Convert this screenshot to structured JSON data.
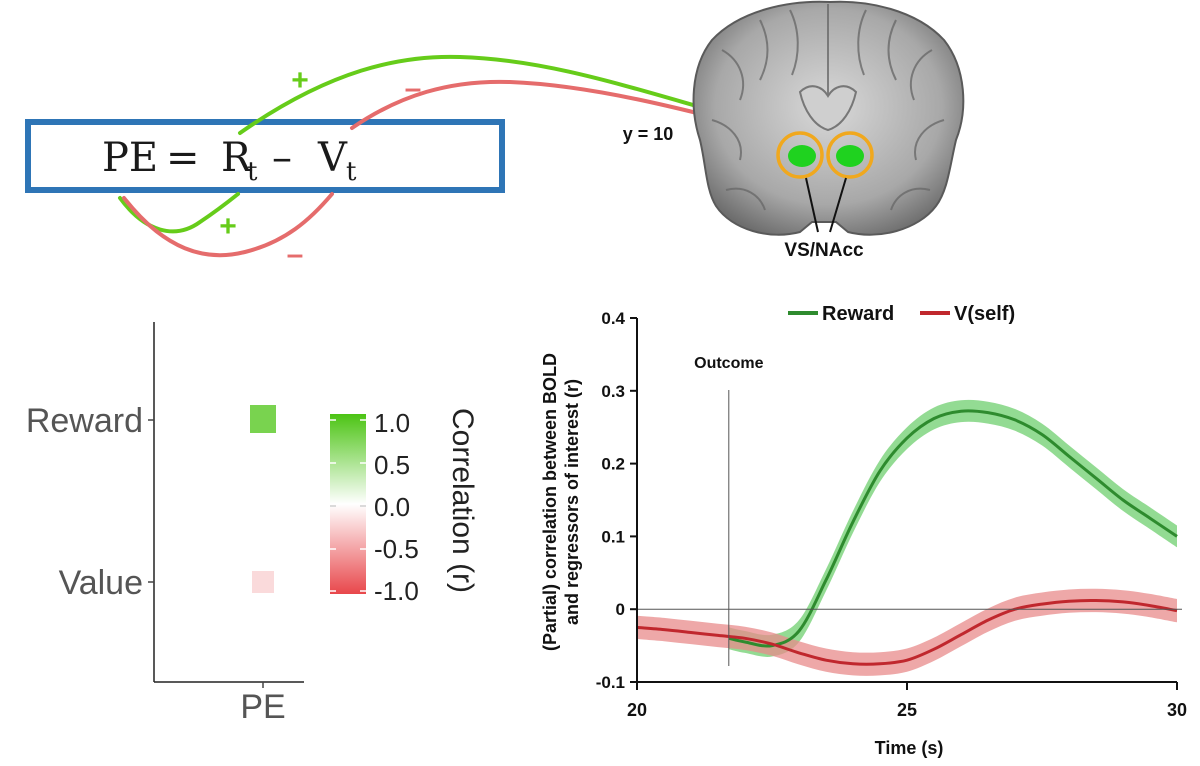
{
  "equation": {
    "lhs": "PE",
    "equals": "=",
    "r_main": "R",
    "r_sub": "t",
    "minus": "–",
    "v_main": "V",
    "v_sub": "t",
    "border_color": "#2e75b6"
  },
  "arc_signs": {
    "plus_top": "+",
    "minus_top": "–",
    "plus_bottom": "+",
    "minus_bottom": "–",
    "green": "#66cc1a",
    "red": "#e56c6c"
  },
  "brain": {
    "slice_label": "y = 10",
    "region_label": "VS/NAcc",
    "roi_fill": "#1fd21f",
    "roi_ring": "#f0a81e"
  },
  "heatmap": {
    "row_labels": [
      "Reward",
      "Value"
    ],
    "col_label": "PE",
    "legend_title": "Correlation (r)",
    "legend_ticks": [
      "1.0",
      "0.5",
      "0.0",
      "-0.5",
      "-1.0"
    ],
    "high_color": "#4cc414",
    "low_color": "#e8474b"
  },
  "chart_data": [
    {
      "type": "heatmap",
      "rows": [
        "Reward",
        "Value"
      ],
      "columns": [
        "PE"
      ],
      "values": [
        [
          0.75
        ],
        [
          -0.2
        ]
      ],
      "colorbar": {
        "label": "Correlation (r)",
        "range": [
          -1.0,
          1.0
        ],
        "ticks": [
          1.0,
          0.5,
          0.0,
          -0.5,
          -1.0
        ]
      }
    },
    {
      "type": "line",
      "xlabel": "Time (s)",
      "ylabel_line1": "(Partial) correlation between BOLD",
      "ylabel_line2": "and regressors of interest (r)",
      "xlim": [
        20,
        30
      ],
      "ylim": [
        -0.1,
        0.4
      ],
      "xticks": [
        20,
        25,
        30
      ],
      "yticks": [
        -0.1,
        0,
        0.1,
        0.2,
        0.3,
        0.4
      ],
      "ytick_labels": [
        "-0.1",
        "0",
        "0.1",
        "0.2",
        "0.3",
        "0.4"
      ],
      "legend_position": "top",
      "annotation": {
        "text": "Outcome",
        "x": 21.7
      },
      "x": [
        20,
        20.5,
        21,
        21.5,
        22,
        22.5,
        23,
        23.5,
        24,
        24.5,
        25,
        25.5,
        26,
        26.5,
        27,
        27.5,
        28,
        28.5,
        29,
        29.5,
        30
      ],
      "series": [
        {
          "name": "Reward",
          "color": "#2e8b2e",
          "band_color": "#6fcf6f",
          "x_start": 21.7,
          "values": [
            null,
            null,
            null,
            null,
            -0.045,
            -0.05,
            -0.03,
            0.04,
            0.12,
            0.19,
            0.235,
            0.262,
            0.272,
            0.27,
            0.26,
            0.24,
            0.21,
            0.18,
            0.15,
            0.125,
            0.1
          ],
          "band_halfwidth": 0.015
        },
        {
          "name": "V(self)",
          "color": "#c0272d",
          "band_color": "#e88b8b",
          "values": [
            -0.025,
            -0.028,
            -0.032,
            -0.036,
            -0.04,
            -0.048,
            -0.06,
            -0.07,
            -0.075,
            -0.075,
            -0.07,
            -0.055,
            -0.035,
            -0.015,
            0.0,
            0.007,
            0.011,
            0.012,
            0.01,
            0.005,
            -0.002
          ],
          "band_halfwidth": 0.016
        }
      ]
    }
  ]
}
